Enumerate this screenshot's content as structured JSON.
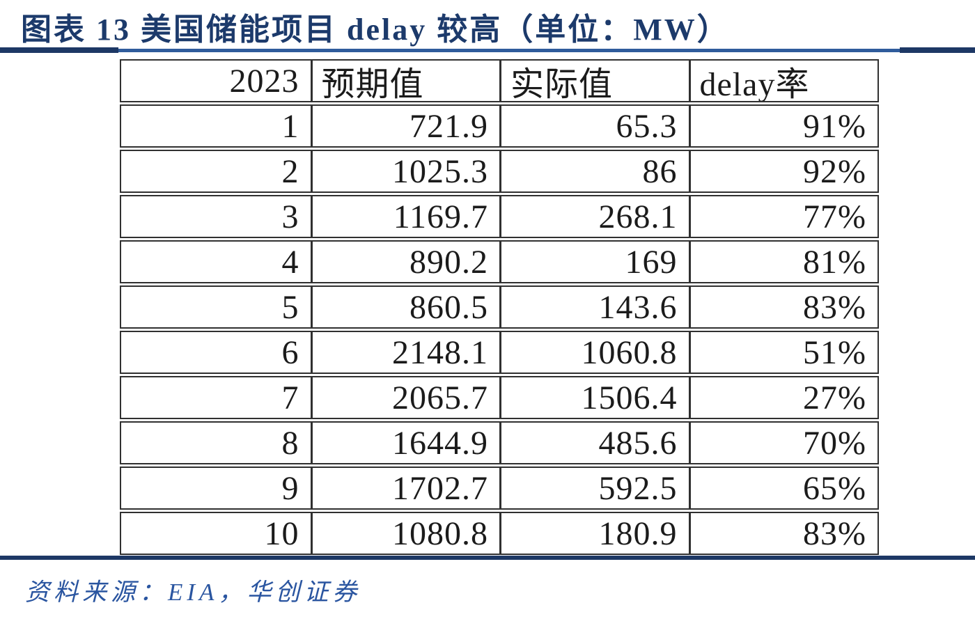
{
  "header": {
    "figure_label": "图表 13",
    "title": "图表 13  美国储能项目 delay 较高（单位：MW）",
    "unit": "MW"
  },
  "footer": {
    "source": "资料来源：EIA，华创证券"
  },
  "colors": {
    "title_navy": "#1c3a6b",
    "top_rule_blue": "#2f5c9c",
    "rule_dark_navy": "#1d3865",
    "footer_blue": "#2a55a0",
    "table_border": "#303030",
    "table_text": "#1b1b1b"
  },
  "chart_data": {
    "type": "table",
    "title": "美国储能项目 delay 较高（单位：MW）",
    "columns": [
      "2023",
      "预期值",
      "实际值",
      "delay率"
    ],
    "rows": [
      [
        "1",
        "721.9",
        "65.3",
        "91%"
      ],
      [
        "2",
        "1025.3",
        "86",
        "92%"
      ],
      [
        "3",
        "1169.7",
        "268.1",
        "77%"
      ],
      [
        "4",
        "890.2",
        "169",
        "81%"
      ],
      [
        "5",
        "860.5",
        "143.6",
        "83%"
      ],
      [
        "6",
        "2148.1",
        "1060.8",
        "51%"
      ],
      [
        "7",
        "2065.7",
        "1506.4",
        "27%"
      ],
      [
        "8",
        "1644.9",
        "485.6",
        "70%"
      ],
      [
        "9",
        "1702.7",
        "592.5",
        "65%"
      ],
      [
        "10",
        "1080.8",
        "180.9",
        "83%"
      ]
    ]
  }
}
